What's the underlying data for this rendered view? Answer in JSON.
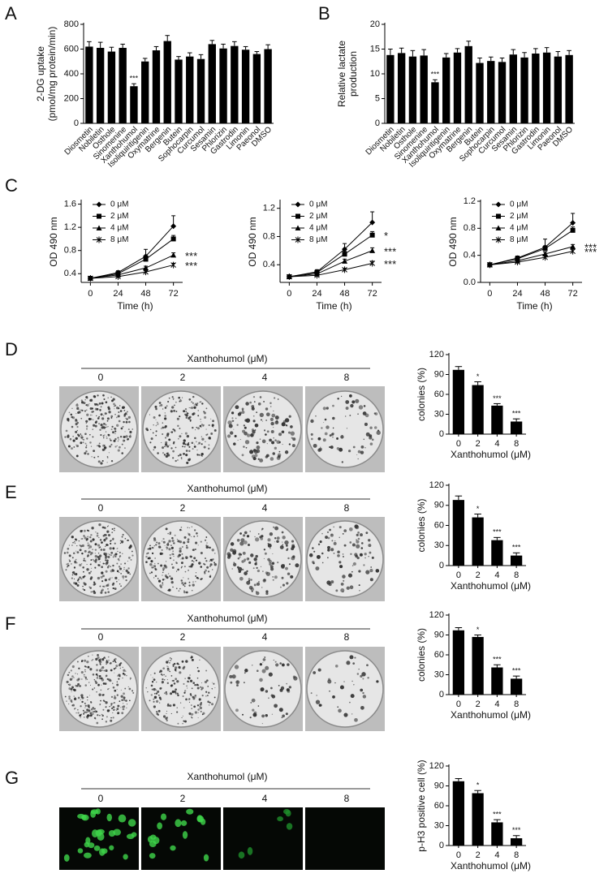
{
  "chart_data": [
    {
      "type": "bar",
      "categories": [
        "Diosmetin",
        "Nobiletin",
        "Osthole",
        "Sinomenine",
        "Xanthohumol",
        "Isoliquiritigenin",
        "Oxymatrine",
        "Bergenin",
        "Butein",
        "Sophocarpin",
        "Curcumol",
        "Sesamin",
        "Phlorizin",
        "Gastrodin",
        "Limonin",
        "Paeonol",
        "DMSO"
      ],
      "values": [
        620,
        610,
        580,
        610,
        300,
        500,
        590,
        665,
        515,
        540,
        520,
        640,
        605,
        625,
        595,
        560,
        600
      ],
      "errors": [
        40,
        45,
        35,
        30,
        20,
        25,
        30,
        45,
        25,
        30,
        35,
        30,
        35,
        35,
        25,
        20,
        35
      ],
      "significance": [
        null,
        null,
        null,
        null,
        "***",
        null,
        null,
        null,
        null,
        null,
        null,
        null,
        null,
        null,
        null,
        null,
        null
      ],
      "ylabel": [
        "2-DG uptake",
        "(pmol/mg protein/min)"
      ],
      "color": "#000000",
      "ylim": [
        0,
        800
      ],
      "yticks": [
        0,
        200,
        400,
        600,
        800
      ]
    },
    {
      "type": "bar",
      "categories": [
        "Diosmetin",
        "Nobiletin",
        "Osthole",
        "Sinomenine",
        "Xanthohumol",
        "Isoliquiritigenin",
        "Oxymatrine",
        "Bergenin",
        "Butein",
        "Sophocarpin",
        "Curcumol",
        "Sesamin",
        "Phlorizin",
        "Gastrodin",
        "Limonin",
        "Paeonol",
        "DMSO"
      ],
      "values": [
        13.8,
        14.2,
        13.5,
        13.7,
        8.3,
        13.3,
        14.3,
        15.6,
        12.2,
        12.6,
        12.4,
        13.9,
        13.3,
        14.1,
        14.3,
        13.5,
        13.8
      ],
      "errors": [
        1.2,
        1,
        1.2,
        1.2,
        0.5,
        0.8,
        0.8,
        1,
        1,
        0.8,
        0.8,
        1,
        1,
        1,
        1,
        1,
        0.9
      ],
      "significance": [
        null,
        null,
        null,
        null,
        "***",
        null,
        null,
        null,
        null,
        null,
        null,
        null,
        null,
        null,
        null,
        null,
        null
      ],
      "ylabel": [
        "Relative lactate",
        "production"
      ],
      "color": "#000000",
      "ylim": [
        0,
        20
      ],
      "yticks": [
        0,
        5,
        10,
        15,
        20
      ]
    },
    {
      "type": "line",
      "x": [
        0,
        24,
        48,
        72
      ],
      "xlim": [
        -8,
        80
      ],
      "xticks": [
        0,
        24,
        48,
        72
      ],
      "ylim": [
        0.25,
        1.65
      ],
      "yticks": [
        0.4,
        0.8,
        1.2,
        1.6
      ],
      "xlabel": "Time (h)",
      "ylabel": "OD 490 nm",
      "series": [
        {
          "name": "0 μM",
          "color": "#000000",
          "marker": "diamond",
          "values": [
            0.32,
            0.42,
            0.7,
            1.22
          ],
          "errors": [
            0.02,
            0.03,
            0.12,
            0.18
          ],
          "significance": null
        },
        {
          "name": "2 μM",
          "color": "#000000",
          "marker": "square",
          "values": [
            0.32,
            0.4,
            0.65,
            1.0
          ],
          "errors": [
            0.02,
            0.02,
            0.04,
            0.06
          ],
          "significance": null
        },
        {
          "name": "4 μM",
          "color": "#000000",
          "marker": "triangle",
          "values": [
            0.32,
            0.38,
            0.5,
            0.72
          ],
          "errors": [
            0.02,
            0.02,
            0.03,
            0.04
          ],
          "significance": "***"
        },
        {
          "name": "8 μM",
          "color": "#000000",
          "marker": "star",
          "values": [
            0.32,
            0.35,
            0.43,
            0.55
          ],
          "errors": [
            0.02,
            0.02,
            0.02,
            0.03
          ],
          "significance": "***"
        }
      ]
    },
    {
      "type": "line",
      "x": [
        0,
        24,
        48,
        72
      ],
      "xlim": [
        -8,
        80
      ],
      "xticks": [
        0,
        24,
        48,
        72
      ],
      "ylim": [
        0.15,
        1.3
      ],
      "yticks": [
        0.4,
        0.8,
        1.2
      ],
      "xlabel": "Time (h)",
      "ylabel": "OD 490 nm",
      "series": [
        {
          "name": "0 μM",
          "color": "#000000",
          "marker": "diamond",
          "values": [
            0.23,
            0.3,
            0.62,
            1.0
          ],
          "errors": [
            0.02,
            0.03,
            0.08,
            0.15
          ],
          "significance": null
        },
        {
          "name": "2 μM",
          "color": "#000000",
          "marker": "square",
          "values": [
            0.23,
            0.29,
            0.55,
            0.82
          ],
          "errors": [
            0.02,
            0.02,
            0.04,
            0.05
          ],
          "significance": "*"
        },
        {
          "name": "4 μM",
          "color": "#000000",
          "marker": "triangle",
          "values": [
            0.23,
            0.27,
            0.45,
            0.6
          ],
          "errors": [
            0.02,
            0.02,
            0.03,
            0.04
          ],
          "significance": "***"
        },
        {
          "name": "8 μM",
          "color": "#000000",
          "marker": "star",
          "values": [
            0.23,
            0.25,
            0.33,
            0.42
          ],
          "errors": [
            0.02,
            0.02,
            0.02,
            0.03
          ],
          "significance": "***"
        }
      ]
    },
    {
      "type": "line",
      "x": [
        0,
        24,
        48,
        72
      ],
      "xlim": [
        -8,
        80
      ],
      "xticks": [
        0,
        24,
        48,
        72
      ],
      "ylim": [
        0,
        1.2
      ],
      "yticks": [
        {
          "value": 0,
          "label": "0.0"
        },
        0.4,
        0.8,
        1.2
      ],
      "xlabel": "Time (h)",
      "ylabel": "OD 490 nm",
      "series": [
        {
          "name": "0 μM",
          "color": "#000000",
          "marker": "diamond",
          "values": [
            0.26,
            0.36,
            0.52,
            0.88
          ],
          "errors": [
            0.03,
            0.03,
            0.12,
            0.14
          ],
          "significance": null
        },
        {
          "name": "2 μM",
          "color": "#000000",
          "marker": "square",
          "values": [
            0.26,
            0.35,
            0.5,
            0.77
          ],
          "errors": [
            0.02,
            0.02,
            0.04,
            0.05
          ],
          "significance": null
        },
        {
          "name": "4 μM",
          "color": "#000000",
          "marker": "triangle",
          "values": [
            0.26,
            0.32,
            0.42,
            0.53
          ],
          "errors": [
            0.02,
            0.02,
            0.03,
            0.03
          ],
          "significance": "***"
        },
        {
          "name": "8 μM",
          "color": "#000000",
          "marker": "star",
          "values": [
            0.26,
            0.3,
            0.37,
            0.46
          ],
          "errors": [
            0.02,
            0.02,
            0.02,
            0.03
          ],
          "significance": "***"
        }
      ]
    },
    {
      "type": "bar",
      "categories": [
        "0",
        "2",
        "4",
        "8"
      ],
      "values": [
        97,
        74,
        43,
        19
      ],
      "errors": [
        5,
        5,
        3,
        4
      ],
      "significance": [
        null,
        "*",
        "***",
        "***"
      ],
      "xlabel": "Xanthohumol (μM)",
      "ylabel": "colonies (%)",
      "color": "#000000",
      "ylim": [
        0,
        120
      ],
      "yticks": [
        0,
        30,
        60,
        90,
        120
      ]
    },
    {
      "type": "bar",
      "categories": [
        "0",
        "2",
        "4",
        "8"
      ],
      "values": [
        98,
        72,
        38,
        15
      ],
      "errors": [
        6,
        5,
        4,
        4
      ],
      "significance": [
        null,
        "*",
        "***",
        "***"
      ],
      "xlabel": "Xanthohumol (μM)",
      "ylabel": "colonies (%)",
      "color": "#000000",
      "ylim": [
        0,
        120
      ],
      "yticks": [
        0,
        30,
        60,
        90,
        120
      ]
    },
    {
      "type": "bar",
      "categories": [
        "0",
        "2",
        "4",
        "8"
      ],
      "values": [
        97,
        87,
        41,
        24
      ],
      "errors": [
        4,
        3,
        4,
        4
      ],
      "significance": [
        null,
        "*",
        "***",
        "***"
      ],
      "xlabel": "Xanthohumol (μM)",
      "ylabel": "colonies (%)",
      "color": "#000000",
      "ylim": [
        0,
        120
      ],
      "yticks": [
        0,
        30,
        60,
        90,
        120
      ]
    },
    {
      "type": "bar",
      "categories": [
        "0",
        "2",
        "4",
        "8"
      ],
      "values": [
        97,
        79,
        35,
        11
      ],
      "errors": [
        4,
        4,
        4,
        4
      ],
      "significance": [
        null,
        "*",
        "***",
        "***"
      ],
      "xlabel": "Xanthohumol (μM)",
      "ylabel": "p-H3 positive cell (%)",
      "color": "#000000",
      "ylim": [
        0,
        120
      ],
      "yticks": [
        0,
        30,
        60,
        90,
        120
      ]
    }
  ],
  "panel_letters": [
    "A",
    "B",
    "C",
    "D",
    "E",
    "F",
    "G"
  ],
  "photo_panels": [
    {
      "header": "Xanthohumol (μM)",
      "conditions": [
        "0",
        "2",
        "4",
        "8"
      ]
    },
    {
      "header": "Xanthohumol (μM)",
      "conditions": [
        "0",
        "2",
        "4",
        "8"
      ]
    },
    {
      "header": "Xanthohumol (μM)",
      "conditions": [
        "0",
        "2",
        "4",
        "8"
      ]
    },
    {
      "header": "Xanthohumol (μM)",
      "conditions": [
        "0",
        "2",
        "4",
        "8"
      ]
    }
  ]
}
